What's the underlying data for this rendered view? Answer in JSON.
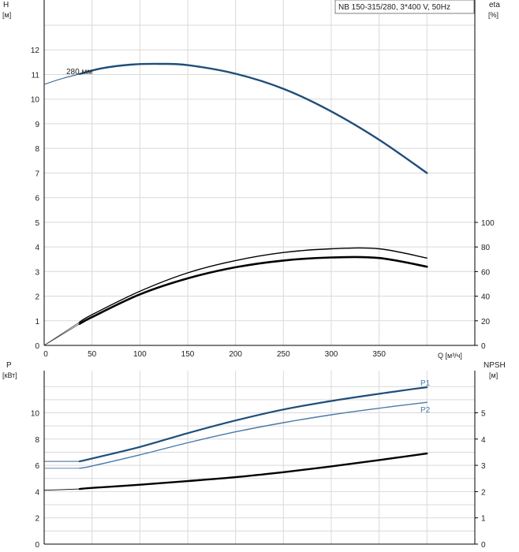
{
  "title": "NB 150-315/280, 3*400 V, 50Hz",
  "colors": {
    "blue": "#1f4e79",
    "blue_light": "#4a79a8",
    "black": "#000000",
    "grid": "#d9d9d9"
  },
  "chart_data": [
    {
      "type": "line",
      "panel": "top",
      "left_axis": {
        "label": "H",
        "unit": "[м]",
        "range": [
          0,
          13
        ],
        "ticks": [
          0,
          1,
          2,
          3,
          4,
          5,
          6,
          7,
          8,
          9,
          10,
          11,
          12
        ]
      },
      "right_axis": {
        "label": "eta",
        "unit": "[%]",
        "range": [
          0,
          100
        ],
        "ticks": [
          0,
          20,
          40,
          60,
          80,
          100
        ]
      },
      "x_axis": {
        "label": "Q [м³/ч]",
        "range": [
          0,
          450
        ],
        "ticks": [
          0,
          50,
          100,
          150,
          200,
          250,
          300,
          350
        ]
      },
      "grid": true,
      "curve_label": "280 мм",
      "series": [
        {
          "axis": "left",
          "style": "head-thin",
          "x": [
            0,
            20,
            37
          ],
          "y": [
            10.6,
            10.85,
            11.02
          ]
        },
        {
          "axis": "left",
          "style": "head",
          "x": [
            37,
            60,
            90,
            120,
            150,
            200,
            250,
            300,
            350,
            400
          ],
          "y": [
            11.02,
            11.25,
            11.4,
            11.43,
            11.38,
            11.03,
            10.42,
            9.5,
            8.35,
            7.0
          ]
        },
        {
          "axis": "right",
          "style": "eta-thin-a",
          "x": [
            0,
            37
          ],
          "y": [
            0,
            19
          ]
        },
        {
          "axis": "right",
          "style": "eta-a",
          "x": [
            37,
            50,
            100,
            150,
            200,
            250,
            300,
            350,
            400
          ],
          "y": [
            19,
            25,
            44,
            59,
            69,
            75.5,
            78.5,
            78.5,
            71
          ]
        },
        {
          "axis": "right",
          "style": "eta-b",
          "x": [
            37,
            50,
            100,
            150,
            200,
            250,
            300,
            350,
            400
          ],
          "y": [
            17.5,
            23,
            41.5,
            54.5,
            63.5,
            69,
            71.5,
            71,
            64
          ]
        }
      ]
    },
    {
      "type": "line",
      "panel": "bottom",
      "left_axis": {
        "label": "P",
        "unit": "[кВт]",
        "range": [
          0,
          12
        ],
        "ticks": [
          0,
          2,
          4,
          6,
          8,
          10
        ]
      },
      "right_axis": {
        "label": "NPSH",
        "unit": "[м]",
        "range": [
          0,
          6
        ],
        "ticks": [
          0,
          1,
          2,
          3,
          4,
          5
        ]
      },
      "x_axis": {
        "range": [
          0,
          450
        ],
        "ticks": [
          0,
          50,
          100,
          150,
          200,
          250,
          300,
          350
        ]
      },
      "grid": true,
      "series": [
        {
          "name": "P1",
          "axis": "left",
          "style": "p1",
          "x": [
            0,
            37,
            50,
            100,
            150,
            200,
            250,
            300,
            350,
            400
          ],
          "y": [
            6.3,
            6.3,
            6.52,
            7.4,
            8.45,
            9.42,
            10.25,
            10.9,
            11.45,
            11.95
          ]
        },
        {
          "name": "P2",
          "axis": "left",
          "style": "p2",
          "x": [
            0,
            37,
            50,
            100,
            150,
            200,
            250,
            300,
            350,
            400
          ],
          "y": [
            5.78,
            5.78,
            5.95,
            6.8,
            7.72,
            8.55,
            9.25,
            9.85,
            10.35,
            10.8
          ]
        },
        {
          "axis": "right",
          "style": "npsh",
          "x": [
            0,
            37,
            50,
            100,
            150,
            200,
            250,
            300,
            350,
            400
          ],
          "y": [
            2.05,
            2.1,
            2.14,
            2.26,
            2.4,
            2.55,
            2.74,
            2.96,
            3.2,
            3.45
          ]
        }
      ]
    }
  ]
}
